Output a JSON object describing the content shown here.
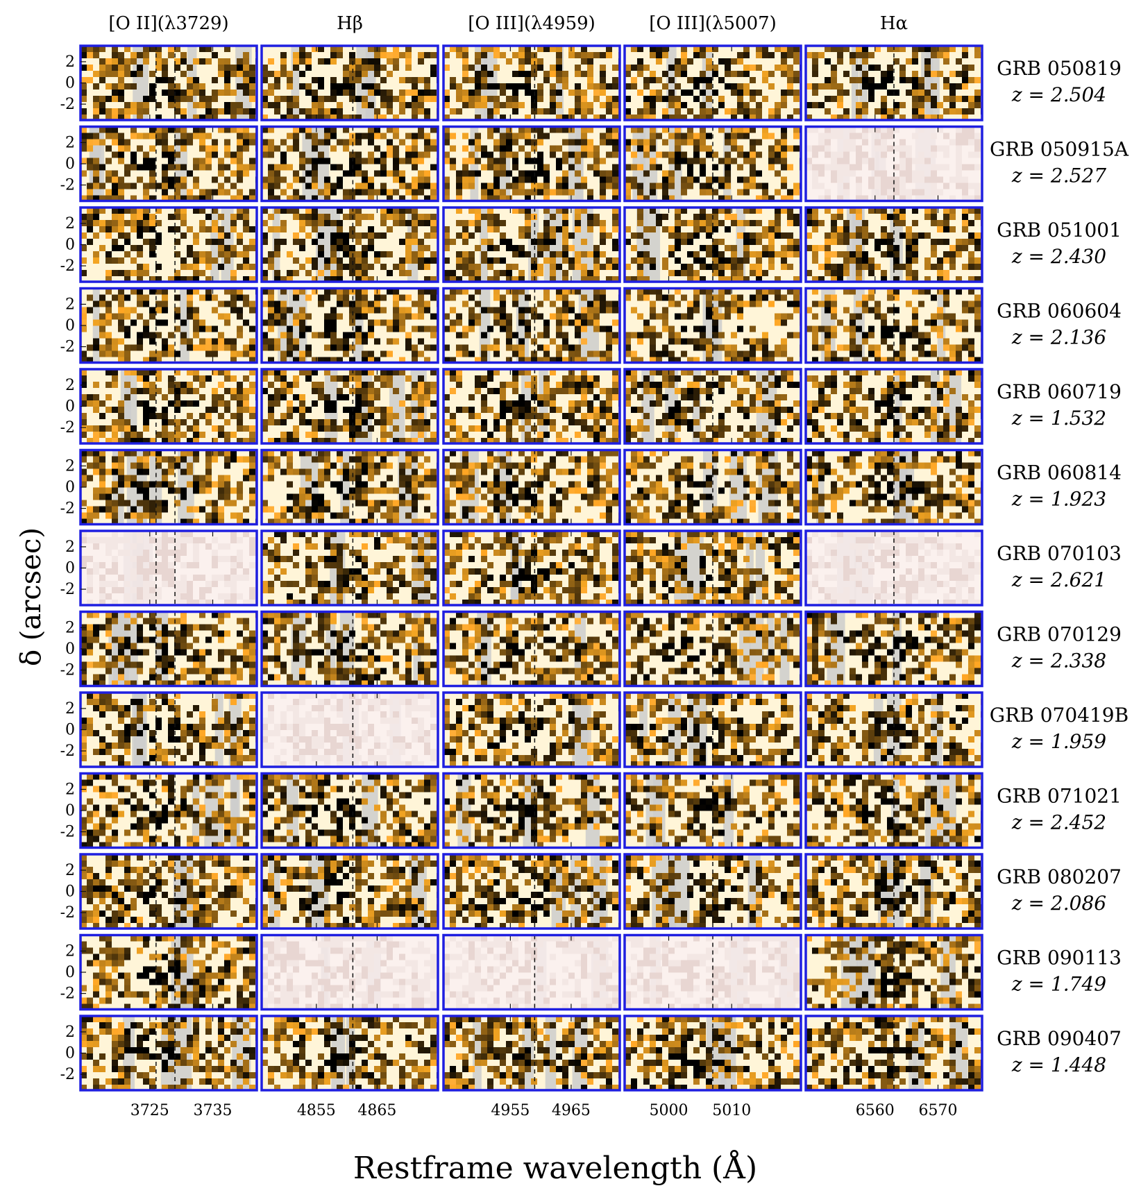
{
  "chart_data": {
    "type": "heatmap",
    "title": "",
    "xlabel": "Restframe wavelength (Å)",
    "ylabel": "δ (arcsec)",
    "columns": [
      {
        "label": "[O II](λ3729)",
        "center": 3729,
        "markers": [
          3726,
          3729
        ],
        "xticks": [
          3725,
          3735
        ],
        "xlim": [
          3714,
          3742
        ]
      },
      {
        "label": "Hβ",
        "center": 4861,
        "markers": [
          4861
        ],
        "xticks": [
          4855,
          4865
        ],
        "xlim": [
          4846,
          4875
        ]
      },
      {
        "label": "[O III](λ4959)",
        "center": 4959,
        "markers": [
          4959
        ],
        "xticks": [
          4955,
          4965
        ],
        "xlim": [
          4944,
          4973
        ]
      },
      {
        "label": "[O III](λ5007)",
        "center": 5007,
        "markers": [
          5007
        ],
        "xticks": [
          5000,
          5010
        ],
        "xlim": [
          4993,
          5021
        ]
      },
      {
        "label": "Hα",
        "center": 6563,
        "markers": [
          6563
        ],
        "xticks": [
          6560,
          6570
        ],
        "xlim": [
          6549,
          6577
        ]
      }
    ],
    "rows": [
      {
        "grb": "GRB 050819",
        "z": "z = 2.504"
      },
      {
        "grb": "GRB 050915A",
        "z": "z = 2.527"
      },
      {
        "grb": "GRB 051001",
        "z": "z = 2.430"
      },
      {
        "grb": "GRB 060604",
        "z": "z = 2.136"
      },
      {
        "grb": "GRB 060719",
        "z": "z = 1.532"
      },
      {
        "grb": "GRB 060814",
        "z": "z = 1.923"
      },
      {
        "grb": "GRB 070103",
        "z": "z = 2.621"
      },
      {
        "grb": "GRB 070129",
        "z": "z = 2.338"
      },
      {
        "grb": "GRB 070419B",
        "z": "z = 1.959"
      },
      {
        "grb": "GRB 071021",
        "z": "z = 2.452"
      },
      {
        "grb": "GRB 080207",
        "z": "z = 2.086"
      },
      {
        "grb": "GRB 090113",
        "z": "z = 1.749"
      },
      {
        "grb": "GRB 090407",
        "z": "z = 1.448"
      }
    ],
    "yticks": [
      "2",
      "0",
      "-2"
    ],
    "ylim": [
      -3.5,
      3.5
    ],
    "colors": {
      "frame": "#1f1fe0",
      "masked": "#cccccc",
      "low": "#ffffff",
      "mid": "#f5a623",
      "high": "#000000"
    },
    "faded_panels": [
      [
        1,
        4
      ],
      [
        6,
        0
      ],
      [
        6,
        4
      ],
      [
        8,
        1
      ],
      [
        11,
        1
      ],
      [
        11,
        2
      ],
      [
        11,
        3
      ]
    ]
  }
}
